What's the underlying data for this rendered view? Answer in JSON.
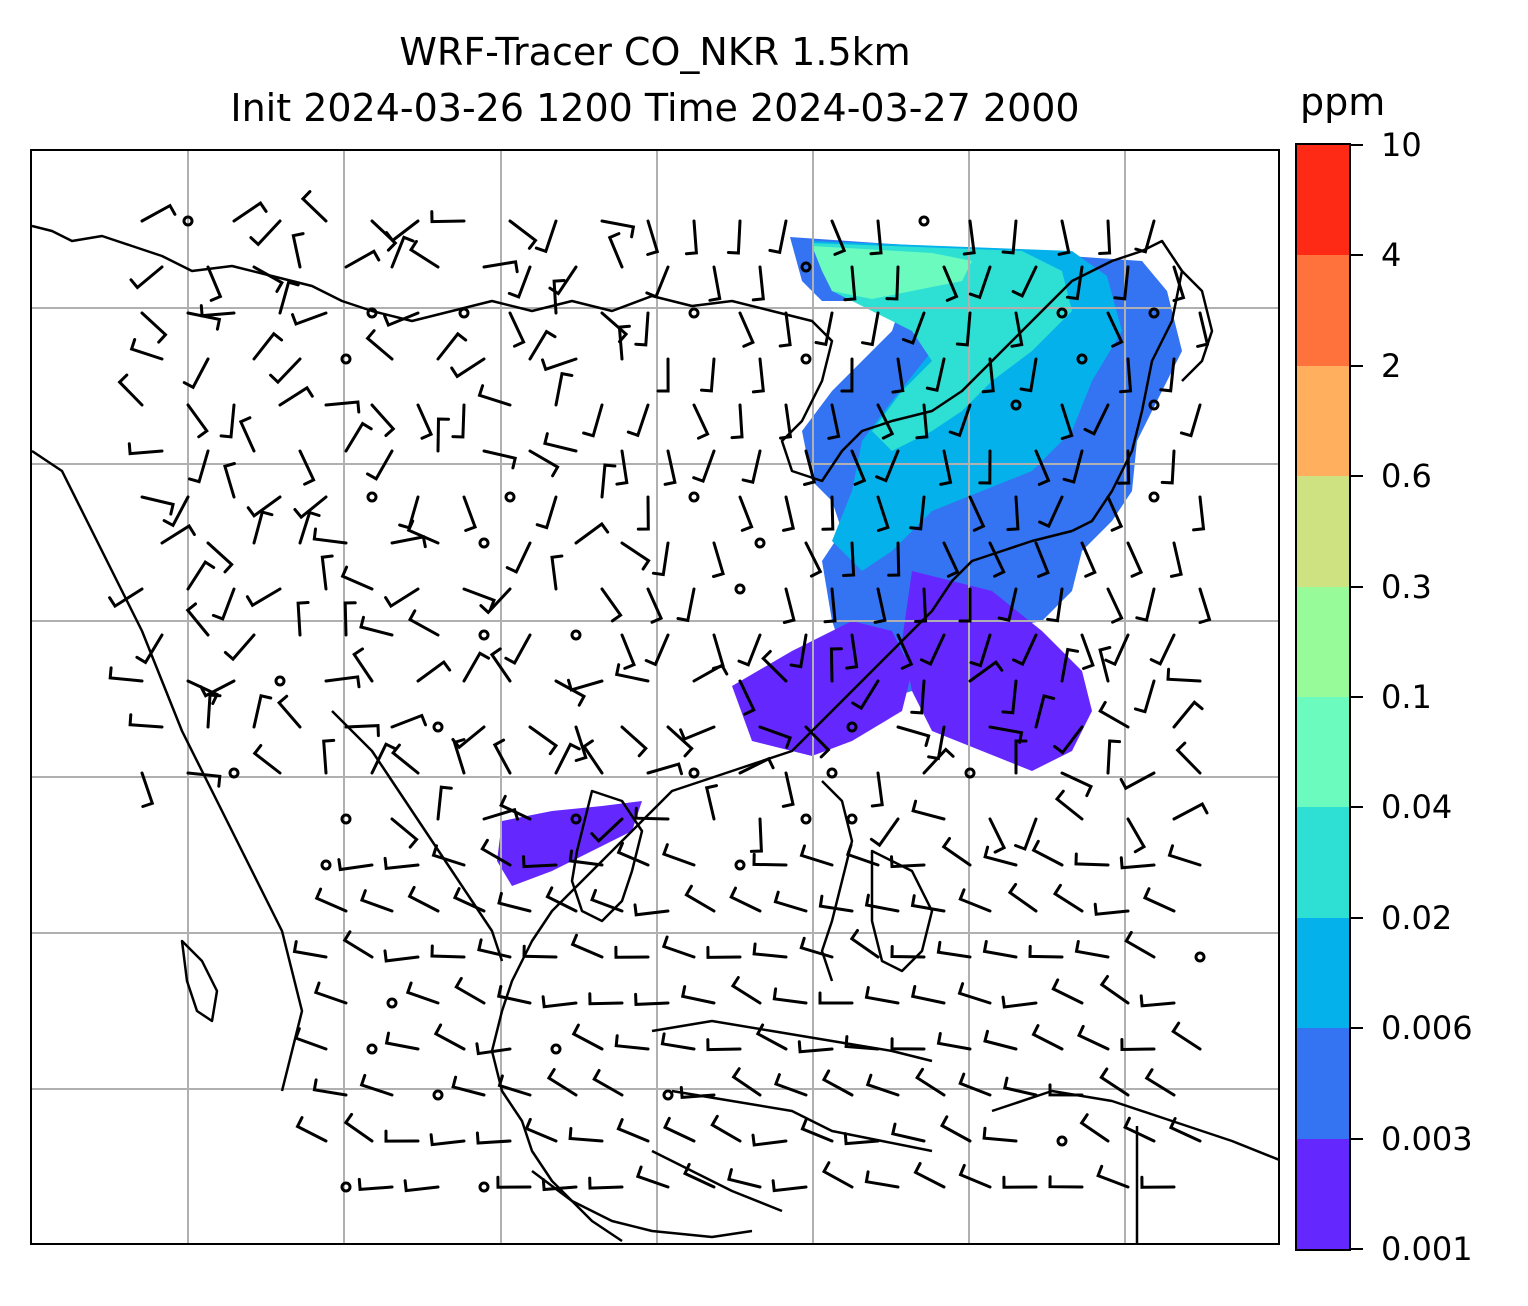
{
  "title": {
    "line1": "WRF-Tracer CO_NKR 1.5km",
    "line2": "Init 2024-03-26 1200 Time 2024-03-27 2000"
  },
  "colorbar": {
    "unit": "ppm",
    "levels": [
      "0.001",
      "0.003",
      "0.006",
      "0.02",
      "0.04",
      "0.1",
      "0.3",
      "0.6",
      "2",
      "4",
      "10"
    ],
    "colors": [
      "#6428ff",
      "#3473f2",
      "#05b1ea",
      "#2ee0d4",
      "#6bfbbf",
      "#97fb99",
      "#cfe282",
      "#ffaf5e",
      "#ff723b",
      "#ff2a15"
    ]
  }
}
